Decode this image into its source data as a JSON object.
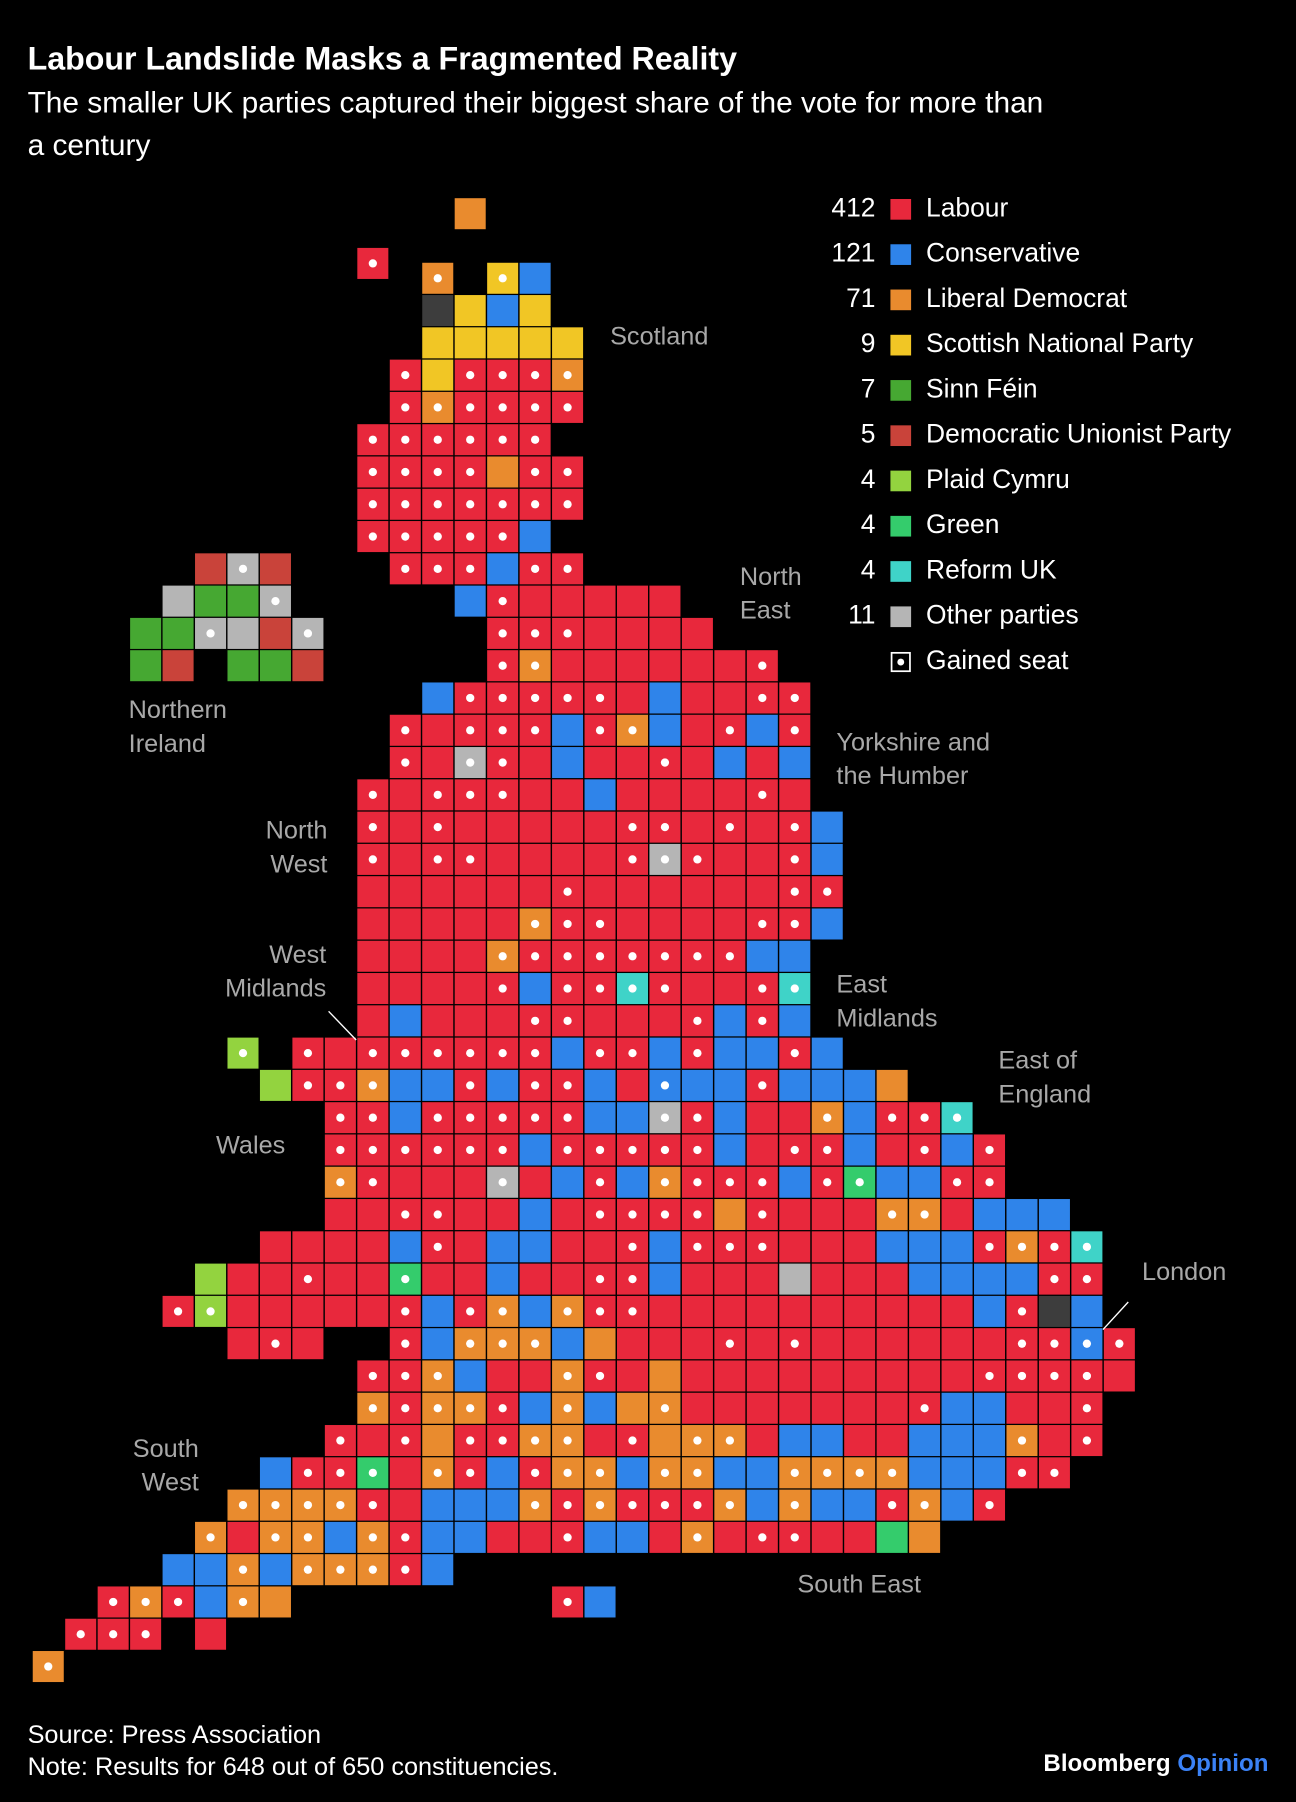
{
  "header": {
    "title": "Labour Landslide Masks a Fragmented Reality",
    "subtitle": [
      "The smaller UK parties captured their biggest share of the vote for more than",
      "a century"
    ]
  },
  "legend": [
    {
      "count": 412,
      "label": "Labour",
      "color": "#e8283c"
    },
    {
      "count": 121,
      "label": "Conservative",
      "color": "#2f84ea"
    },
    {
      "count": 71,
      "label": "Liberal Democrat",
      "color": "#e98b2e"
    },
    {
      "count": 9,
      "label": "Scottish National Party",
      "color": "#f1c625"
    },
    {
      "count": 7,
      "label": "Sinn Féin",
      "color": "#46a832"
    },
    {
      "count": 5,
      "label": "Democratic Unionist Party",
      "color": "#c9433a"
    },
    {
      "count": 4,
      "label": "Plaid Cymru",
      "color": "#93d33f"
    },
    {
      "count": 4,
      "label": "Green",
      "color": "#34cc6c"
    },
    {
      "count": 4,
      "label": "Reform UK",
      "color": "#3fd3c8"
    },
    {
      "count": 11,
      "label": "Other parties",
      "color": "#b5b5b5"
    }
  ],
  "gained_label": "Gained seat",
  "regions": [
    {
      "lines": [
        "Scotland"
      ]
    },
    {
      "lines": [
        "North",
        "East"
      ]
    },
    {
      "lines": [
        "Northern",
        "Ireland"
      ]
    },
    {
      "lines": [
        "Yorkshire and",
        "the Humber"
      ]
    },
    {
      "lines": [
        "North",
        "West"
      ]
    },
    {
      "lines": [
        "West",
        "Midlands"
      ]
    },
    {
      "lines": [
        "East",
        "Midlands"
      ]
    },
    {
      "lines": [
        "East of",
        "England"
      ]
    },
    {
      "lines": [
        "Wales"
      ]
    },
    {
      "lines": [
        "London"
      ]
    },
    {
      "lines": [
        "South",
        "West"
      ]
    },
    {
      "lines": [
        "South East"
      ]
    }
  ],
  "footer": {
    "source": "Source: Press Association",
    "note": "Note: Results for 648 out of 650 constituencies.",
    "brand": "Bloomberg",
    "brand_suffix": "Opinion"
  }
}
